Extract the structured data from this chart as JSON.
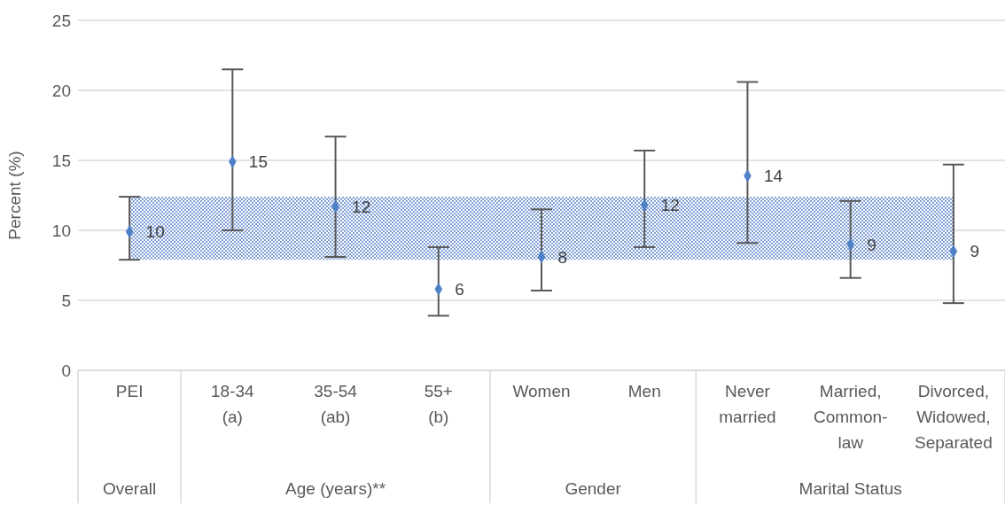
{
  "chart_data": {
    "type": "scatter",
    "ylabel": "Percent (%)",
    "categories": [
      "PEI",
      "18-34\n(a)",
      "35-54\n(ab)",
      "55+\n(b)",
      "Women",
      "Men",
      "Never\nmarried",
      "Married,\nCommon-\nlaw",
      "Divorced,\nWidowed,\nSeparated"
    ],
    "series": [
      {
        "color": "#4f81c7",
        "values": [
          9.9,
          14.9,
          11.7,
          5.8,
          8.1,
          11.8,
          13.9,
          9.0,
          8.5
        ],
        "errors": [
          [
            7.9,
            12.4
          ],
          [
            10.0,
            21.5
          ],
          [
            8.1,
            16.7
          ],
          [
            3.9,
            8.8
          ],
          [
            5.7,
            11.5
          ],
          [
            8.8,
            15.7
          ],
          [
            9.1,
            20.6
          ],
          [
            6.6,
            12.1
          ],
          [
            4.8,
            14.7
          ]
        ],
        "value_labels": [
          "10",
          "15",
          "12",
          "6",
          "8",
          "12",
          "14",
          "9",
          "9"
        ]
      }
    ],
    "marker": "diamond",
    "ylim": [
      0,
      25
    ],
    "yticks": [
      0,
      5,
      10,
      15,
      20,
      25
    ],
    "grid": "y",
    "legend": false,
    "bands": [
      {
        "axis": "y",
        "from": 7.9,
        "to": 12.4,
        "color": "#4472c4"
      }
    ],
    "annotations": [
      "Overall",
      "Age (years)**",
      "Gender",
      "Marital Status"
    ]
  }
}
